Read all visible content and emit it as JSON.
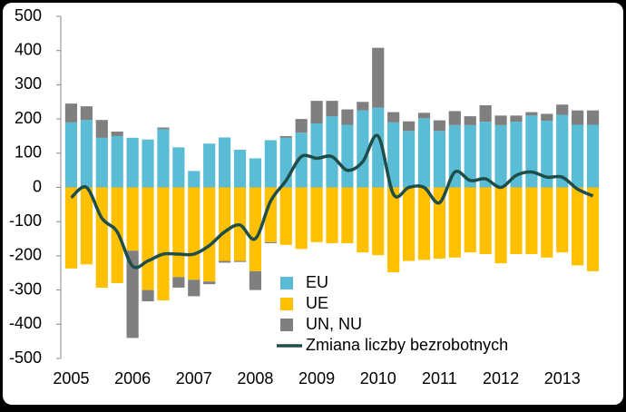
{
  "chart_data": {
    "type": "bar_line",
    "categories": [
      "2005",
      null,
      null,
      null,
      "2006",
      null,
      null,
      null,
      "2007",
      null,
      null,
      null,
      "2008",
      null,
      null,
      null,
      "2009",
      null,
      null,
      null,
      "2010",
      null,
      null,
      null,
      "2011",
      null,
      null,
      null,
      "2012",
      null,
      null,
      null,
      "2013",
      null,
      null
    ],
    "series": [
      {
        "name": "EU",
        "color": "#5bbcd6",
        "values": [
          190,
          197,
          145,
          150,
          145,
          140,
          170,
          117,
          48,
          128,
          146,
          110,
          85,
          138,
          145,
          160,
          187,
          208,
          183,
          225,
          233,
          190,
          165,
          202,
          165,
          182,
          182,
          192,
          182,
          192,
          210,
          195,
          212,
          183,
          183
        ]
      },
      {
        "name": "UE",
        "color": "#ffc000",
        "values": [
          -237,
          -225,
          -293,
          -280,
          -185,
          -300,
          -330,
          -262,
          -270,
          -275,
          -215,
          -215,
          -245,
          -160,
          -168,
          -180,
          -160,
          -163,
          -163,
          -190,
          -198,
          -248,
          -215,
          -212,
          -208,
          -205,
          -190,
          -195,
          -222,
          -195,
          -195,
          -205,
          -190,
          -228,
          -245
        ]
      },
      {
        "name": "UN, NU",
        "color": "#7f7f7f",
        "values": [
          55,
          40,
          52,
          13,
          -255,
          -33,
          5,
          -31,
          -48,
          -8,
          -5,
          -3,
          -55,
          -3,
          5,
          40,
          66,
          45,
          45,
          25,
          175,
          30,
          28,
          16,
          31,
          41,
          26,
          48,
          28,
          18,
          10,
          20,
          30,
          42,
          42
        ]
      },
      {
        "name": "Zmiana liczby bezrobotnych",
        "color": "#1f4e4a",
        "kind": "line",
        "values": [
          -30,
          0,
          -90,
          -130,
          -230,
          -215,
          -195,
          -195,
          -195,
          -170,
          -130,
          -110,
          -150,
          -40,
          20,
          90,
          85,
          90,
          50,
          75,
          150,
          -20,
          0,
          0,
          -45,
          45,
          20,
          25,
          0,
          35,
          45,
          30,
          30,
          -5,
          -25
        ]
      }
    ],
    "ylim": [
      -500,
      500
    ],
    "yticks": [
      -500,
      -400,
      -300,
      -200,
      -100,
      0,
      100,
      200,
      300,
      400,
      500
    ],
    "grid": false,
    "legend": "bottom"
  }
}
